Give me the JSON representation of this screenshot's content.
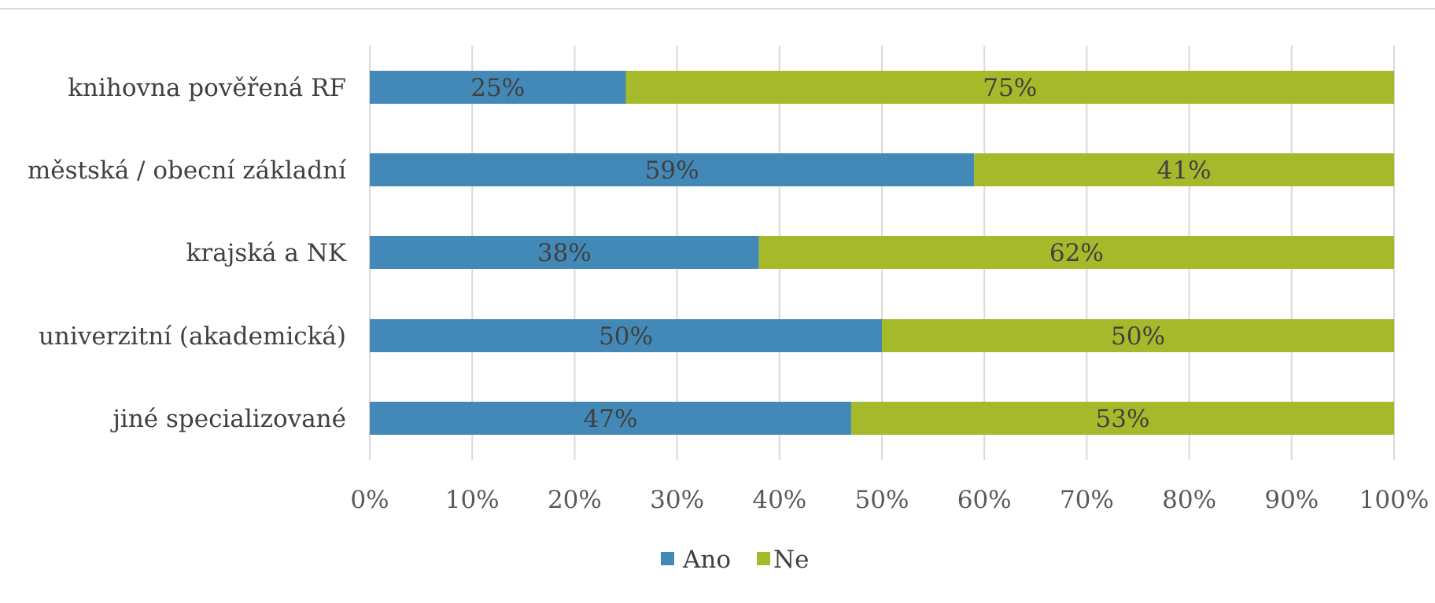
{
  "chart_data": {
    "type": "bar",
    "orientation": "horizontal",
    "stacked": "percent",
    "categories": [
      "knihovna pověřená RF",
      "městská  / obecní základní",
      "krajská a NK",
      "univerzitní (akademická)",
      "jiné specializované"
    ],
    "series": [
      {
        "name": "Ano",
        "color": "#4389b8",
        "values": [
          25,
          59,
          38,
          50,
          47
        ],
        "labels": [
          "25%",
          "59%",
          "38%",
          "50%",
          "47%"
        ]
      },
      {
        "name": "Ne",
        "color": "#a6b92a",
        "values": [
          75,
          41,
          62,
          50,
          53
        ],
        "labels": [
          "75%",
          "41%",
          "62%",
          "50%",
          "53%"
        ]
      }
    ],
    "x_ticks": [
      "0%",
      "10%",
      "20%",
      "30%",
      "40%",
      "50%",
      "60%",
      "70%",
      "80%",
      "90%",
      "100%"
    ],
    "xlim": [
      0,
      100
    ],
    "grid": "vertical",
    "legend_position": "bottom",
    "title": "",
    "xlabel": "",
    "ylabel": ""
  }
}
